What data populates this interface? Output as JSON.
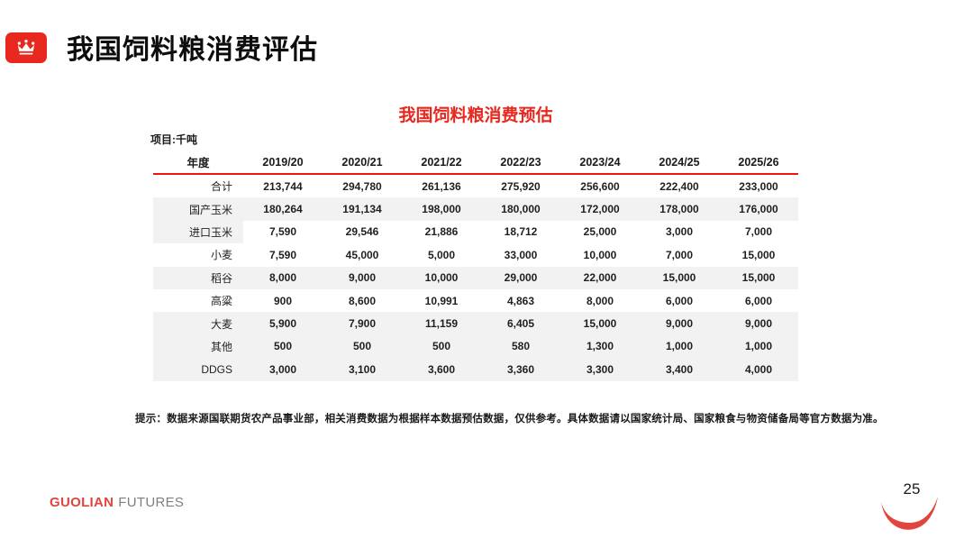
{
  "page": {
    "title": "我国饲料粮消费评估",
    "page_number": "25",
    "brand": {
      "guolian": "GUOLIAN",
      "futures": "FUTURES"
    }
  },
  "table": {
    "title": "我国饲料粮消费预估",
    "unit_label": "项目:千吨",
    "header": [
      "年度",
      "2019/20",
      "2020/21",
      "2021/22",
      "2022/23",
      "2023/24",
      "2024/25",
      "2025/26"
    ],
    "rows": [
      {
        "label": "合计",
        "shade": "none",
        "values": [
          "213,744",
          "294,780",
          "261,136",
          "275,920",
          "256,600",
          "222,400",
          "233,000"
        ]
      },
      {
        "label": "国产玉米",
        "shade": "full",
        "values": [
          "180,264",
          "191,134",
          "198,000",
          "180,000",
          "172,000",
          "178,000",
          "176,000"
        ]
      },
      {
        "label": "进口玉米",
        "shade": "label",
        "values": [
          "7,590",
          "29,546",
          "21,886",
          "18,712",
          "25,000",
          "3,000",
          "7,000"
        ]
      },
      {
        "label": "小麦",
        "shade": "none",
        "values": [
          "7,590",
          "45,000",
          "5,000",
          "33,000",
          "10,000",
          "7,000",
          "15,000"
        ]
      },
      {
        "label": "稻谷",
        "shade": "full",
        "values": [
          "8,000",
          "9,000",
          "10,000",
          "29,000",
          "22,000",
          "15,000",
          "15,000"
        ]
      },
      {
        "label": "高粱",
        "shade": "none",
        "values": [
          "900",
          "8,600",
          "10,991",
          "4,863",
          "8,000",
          "6,000",
          "6,000"
        ]
      },
      {
        "label": "大麦",
        "shade": "full",
        "values": [
          "5,900",
          "7,900",
          "11,159",
          "6,405",
          "15,000",
          "9,000",
          "9,000"
        ]
      },
      {
        "label": "其他",
        "shade": "full",
        "values": [
          "500",
          "500",
          "500",
          "580",
          "1,300",
          "1,000",
          "1,000"
        ]
      },
      {
        "label": "DDGS",
        "shade": "full",
        "values": [
          "3,000",
          "3,100",
          "3,600",
          "3,360",
          "3,300",
          "3,400",
          "4,000"
        ]
      }
    ],
    "note": "提示：数据来源国联期货农产品事业部，相关消费数据为根据样本数据预估数据，仅供参考。具体数据请以国家统计局、国家粮食与物资储备局等官方数据为准。"
  },
  "colors": {
    "accent_red": "#e8281e",
    "header_line_red": "#ef1410",
    "row_shade": "#f2f2f2",
    "brand_red": "#e2453d",
    "brand_gray": "#7f7f7f"
  }
}
